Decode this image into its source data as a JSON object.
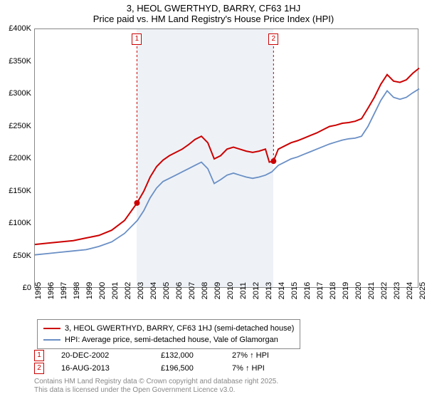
{
  "title1": "3, HEOL GWERTHYD, BARRY, CF63 1HJ",
  "title2": "Price paid vs. HM Land Registry's House Price Index (HPI)",
  "chart": {
    "type": "line",
    "background_color": "#ffffff",
    "grid_color": "#888888",
    "shaded_color": "#eef2f7",
    "x_range_years": [
      1995,
      2025
    ],
    "y_range": [
      0,
      400000
    ],
    "y_ticks": [
      0,
      50000,
      100000,
      150000,
      200000,
      250000,
      300000,
      350000,
      400000
    ],
    "y_tick_labels": [
      "£0",
      "£50K",
      "£100K",
      "£150K",
      "£200K",
      "£250K",
      "£300K",
      "£350K",
      "£400K"
    ],
    "x_ticks": [
      1995,
      1996,
      1997,
      1998,
      1999,
      2000,
      2001,
      2002,
      2003,
      2004,
      2005,
      2006,
      2007,
      2008,
      2009,
      2010,
      2011,
      2012,
      2013,
      2014,
      2015,
      2016,
      2017,
      2018,
      2019,
      2020,
      2021,
      2022,
      2023,
      2024,
      2025
    ],
    "shaded_ranges": [
      [
        2002.97,
        2013.63
      ]
    ],
    "series": [
      {
        "name": "property",
        "label": "3, HEOL GWERTHYD, BARRY, CF63 1HJ (semi-detached house)",
        "color": "#cc0000",
        "line_width": 2,
        "points_year": [
          1995,
          1996,
          1997,
          1998,
          1999,
          2000,
          2001,
          2002,
          2002.97,
          2003.5,
          2004,
          2004.5,
          2005,
          2005.5,
          2006,
          2006.5,
          2007,
          2007.5,
          2008,
          2008.5,
          2009,
          2009.5,
          2010,
          2010.5,
          2011,
          2011.5,
          2012,
          2012.5,
          2013,
          2013.3,
          2013.63,
          2014,
          2014.5,
          2015,
          2015.5,
          2016,
          2016.5,
          2017,
          2017.5,
          2018,
          2018.5,
          2019,
          2019.5,
          2020,
          2020.5,
          2021,
          2021.5,
          2022,
          2022.5,
          2023,
          2023.5,
          2024,
          2024.5,
          2025
        ],
        "points_value": [
          68000,
          70000,
          72000,
          74000,
          78000,
          82000,
          90000,
          105000,
          132000,
          150000,
          172000,
          188000,
          198000,
          205000,
          210000,
          215000,
          222000,
          230000,
          235000,
          225000,
          200000,
          205000,
          215000,
          218000,
          215000,
          212000,
          210000,
          212000,
          215000,
          195000,
          196500,
          215000,
          220000,
          225000,
          228000,
          232000,
          236000,
          240000,
          245000,
          250000,
          252000,
          255000,
          256000,
          258000,
          262000,
          278000,
          295000,
          315000,
          330000,
          320000,
          318000,
          322000,
          332000,
          340000
        ]
      },
      {
        "name": "hpi",
        "label": "HPI: Average price, semi-detached house, Vale of Glamorgan",
        "color": "#6a8fc5",
        "line_width": 1.8,
        "points_year": [
          1995,
          1996,
          1997,
          1998,
          1999,
          2000,
          2001,
          2002,
          2003,
          2003.5,
          2004,
          2004.5,
          2005,
          2005.5,
          2006,
          2006.5,
          2007,
          2007.5,
          2008,
          2008.5,
          2009,
          2009.5,
          2010,
          2010.5,
          2011,
          2011.5,
          2012,
          2012.5,
          2013,
          2013.5,
          2014,
          2014.5,
          2015,
          2015.5,
          2016,
          2016.5,
          2017,
          2017.5,
          2018,
          2018.5,
          2019,
          2019.5,
          2020,
          2020.5,
          2021,
          2021.5,
          2022,
          2022.5,
          2023,
          2023.5,
          2024,
          2024.5,
          2025
        ],
        "points_value": [
          52000,
          54000,
          56000,
          58000,
          60000,
          65000,
          72000,
          85000,
          105000,
          120000,
          140000,
          155000,
          165000,
          170000,
          175000,
          180000,
          185000,
          190000,
          195000,
          185000,
          162000,
          168000,
          175000,
          178000,
          175000,
          172000,
          170000,
          172000,
          175000,
          180000,
          190000,
          195000,
          200000,
          203000,
          207000,
          211000,
          215000,
          219000,
          223000,
          226000,
          229000,
          231000,
          232000,
          235000,
          250000,
          270000,
          290000,
          305000,
          295000,
          292000,
          295000,
          302000,
          308000
        ]
      }
    ],
    "sale_markers": [
      {
        "n": "1",
        "year": 2002.97,
        "value": 132000
      },
      {
        "n": "2",
        "year": 2013.63,
        "value": 196500
      }
    ]
  },
  "legend": {
    "items": [
      {
        "color": "#cc0000",
        "label": "3, HEOL GWERTHYD, BARRY, CF63 1HJ (semi-detached house)"
      },
      {
        "color": "#6a8fc5",
        "label": "HPI: Average price, semi-detached house, Vale of Glamorgan"
      }
    ]
  },
  "sales": [
    {
      "n": "1",
      "date": "20-DEC-2002",
      "price": "£132,000",
      "pct": "27% ↑ HPI"
    },
    {
      "n": "2",
      "date": "16-AUG-2013",
      "price": "£196,500",
      "pct": "7% ↑ HPI"
    }
  ],
  "footer1": "Contains HM Land Registry data © Crown copyright and database right 2025.",
  "footer2": "This data is licensed under the Open Government Licence v3.0."
}
